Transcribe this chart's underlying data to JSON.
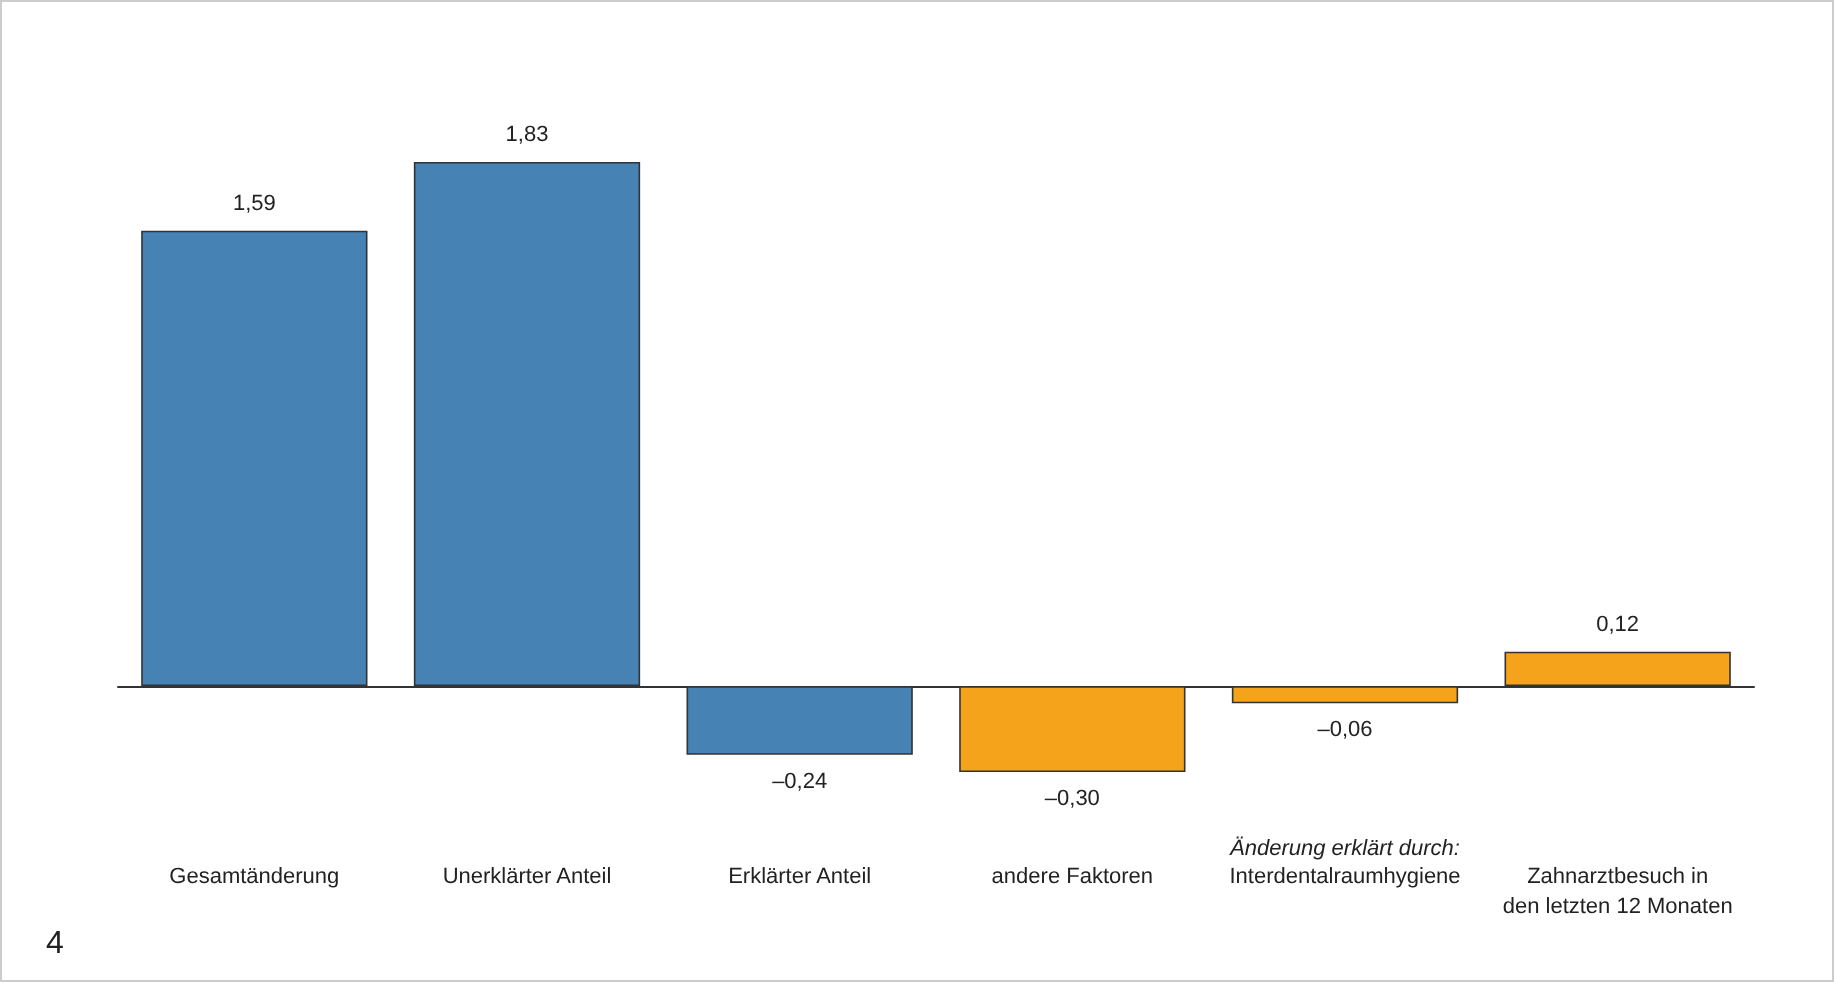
{
  "chart_data": {
    "type": "bar",
    "categories": [
      "Gesamtänderung",
      "Unerklärter Anteil",
      "Erklärter Anteil",
      "andere Faktoren",
      "Interdentalraumhygiene",
      "Zahnarztbesuch in\nden letzten 12 Monaten"
    ],
    "values": [
      1.59,
      1.83,
      -0.24,
      -0.3,
      -0.06,
      0.12
    ],
    "colors": [
      "#4682b4",
      "#4682b4",
      "#4682b4",
      "#f5a31a",
      "#f5a31a",
      "#f5a31a"
    ],
    "value_labels": [
      "1,59",
      "1,83",
      "–0,24",
      "–0,30",
      "–0,06",
      "0,12"
    ],
    "annotations": [
      "Änderung erklärt durch:",
      "4"
    ],
    "grid": false
  }
}
